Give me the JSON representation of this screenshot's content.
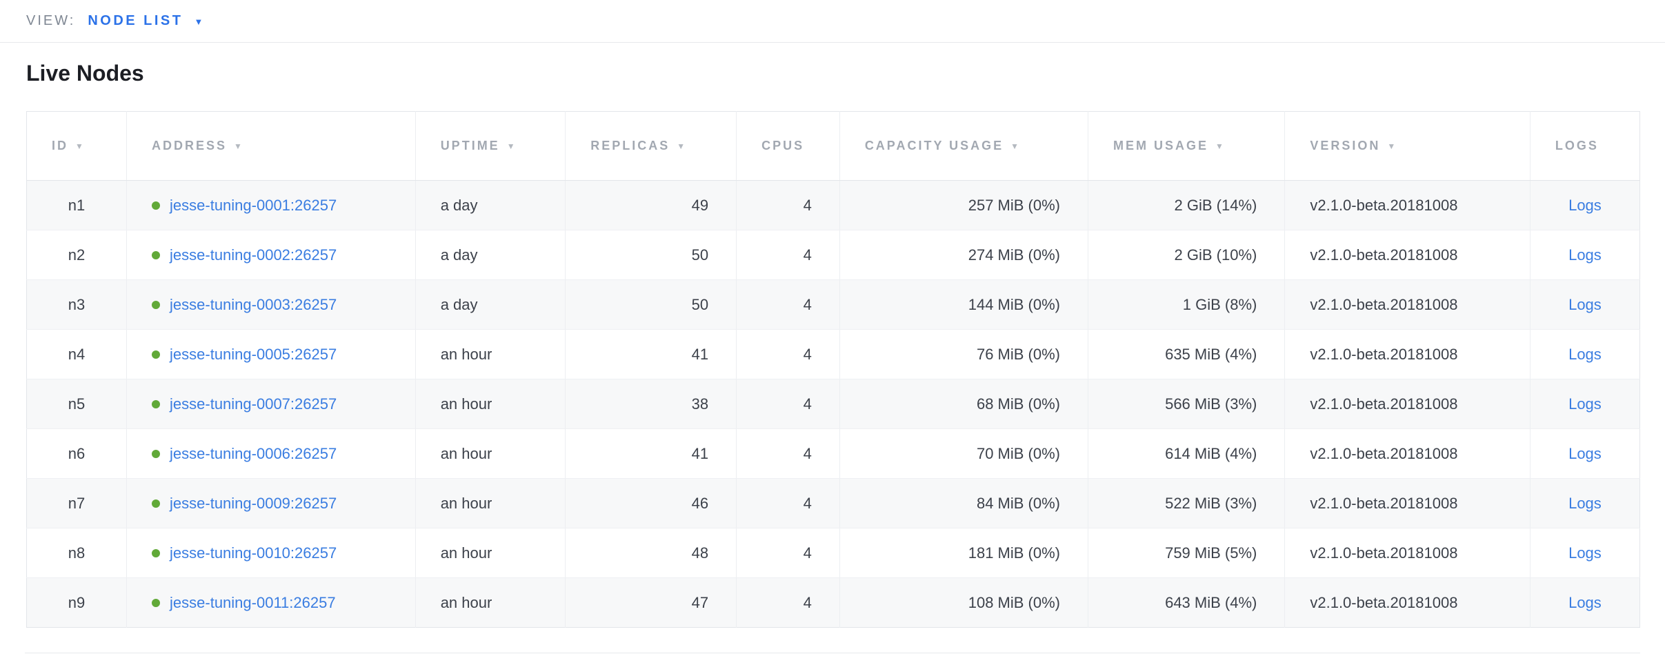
{
  "view_bar": {
    "label": "VIEW:",
    "selected_view": "NODE LIST"
  },
  "page": {
    "title": "Live Nodes"
  },
  "icons": {
    "sort_caret": "▼",
    "dropdown_caret": "▼",
    "node_status_dot": "healthy-green-dot"
  },
  "colors": {
    "accent_blue": "#2c72e8",
    "link_blue": "#3a7de1",
    "healthy_green": "#61a938",
    "header_gray": "#a2a8b1",
    "row_alt_bg": "#f7f8f9",
    "border": "#e3e6ea"
  },
  "table": {
    "columns": [
      {
        "key": "id",
        "label": "ID",
        "sortable": true,
        "align": "center"
      },
      {
        "key": "address",
        "label": "ADDRESS",
        "sortable": true,
        "align": "left"
      },
      {
        "key": "uptime",
        "label": "UPTIME",
        "sortable": true,
        "align": "left"
      },
      {
        "key": "replicas",
        "label": "REPLICAS",
        "sortable": true,
        "align": "right"
      },
      {
        "key": "cpus",
        "label": "CPUS",
        "sortable": false,
        "align": "right"
      },
      {
        "key": "capacity",
        "label": "CAPACITY USAGE",
        "sortable": true,
        "align": "right"
      },
      {
        "key": "mem",
        "label": "MEM USAGE",
        "sortable": true,
        "align": "right"
      },
      {
        "key": "version",
        "label": "VERSION",
        "sortable": true,
        "align": "left"
      },
      {
        "key": "logs",
        "label": "LOGS",
        "sortable": false,
        "align": "center"
      }
    ],
    "rows": [
      {
        "id": "n1",
        "address": "jesse-tuning-0001:26257",
        "uptime": "a day",
        "replicas": "49",
        "cpus": "4",
        "capacity": "257 MiB (0%)",
        "mem": "2 GiB (14%)",
        "version": "v2.1.0-beta.20181008",
        "logs": "Logs"
      },
      {
        "id": "n2",
        "address": "jesse-tuning-0002:26257",
        "uptime": "a day",
        "replicas": "50",
        "cpus": "4",
        "capacity": "274 MiB (0%)",
        "mem": "2 GiB (10%)",
        "version": "v2.1.0-beta.20181008",
        "logs": "Logs"
      },
      {
        "id": "n3",
        "address": "jesse-tuning-0003:26257",
        "uptime": "a day",
        "replicas": "50",
        "cpus": "4",
        "capacity": "144 MiB (0%)",
        "mem": "1 GiB (8%)",
        "version": "v2.1.0-beta.20181008",
        "logs": "Logs"
      },
      {
        "id": "n4",
        "address": "jesse-tuning-0005:26257",
        "uptime": "an hour",
        "replicas": "41",
        "cpus": "4",
        "capacity": "76 MiB (0%)",
        "mem": "635 MiB (4%)",
        "version": "v2.1.0-beta.20181008",
        "logs": "Logs"
      },
      {
        "id": "n5",
        "address": "jesse-tuning-0007:26257",
        "uptime": "an hour",
        "replicas": "38",
        "cpus": "4",
        "capacity": "68 MiB (0%)",
        "mem": "566 MiB (3%)",
        "version": "v2.1.0-beta.20181008",
        "logs": "Logs"
      },
      {
        "id": "n6",
        "address": "jesse-tuning-0006:26257",
        "uptime": "an hour",
        "replicas": "41",
        "cpus": "4",
        "capacity": "70 MiB (0%)",
        "mem": "614 MiB (4%)",
        "version": "v2.1.0-beta.20181008",
        "logs": "Logs"
      },
      {
        "id": "n7",
        "address": "jesse-tuning-0009:26257",
        "uptime": "an hour",
        "replicas": "46",
        "cpus": "4",
        "capacity": "84 MiB (0%)",
        "mem": "522 MiB (3%)",
        "version": "v2.1.0-beta.20181008",
        "logs": "Logs"
      },
      {
        "id": "n8",
        "address": "jesse-tuning-0010:26257",
        "uptime": "an hour",
        "replicas": "48",
        "cpus": "4",
        "capacity": "181 MiB (0%)",
        "mem": "759 MiB (5%)",
        "version": "v2.1.0-beta.20181008",
        "logs": "Logs"
      },
      {
        "id": "n9",
        "address": "jesse-tuning-0011:26257",
        "uptime": "an hour",
        "replicas": "47",
        "cpus": "4",
        "capacity": "108 MiB (0%)",
        "mem": "643 MiB (4%)",
        "version": "v2.1.0-beta.20181008",
        "logs": "Logs"
      }
    ]
  }
}
